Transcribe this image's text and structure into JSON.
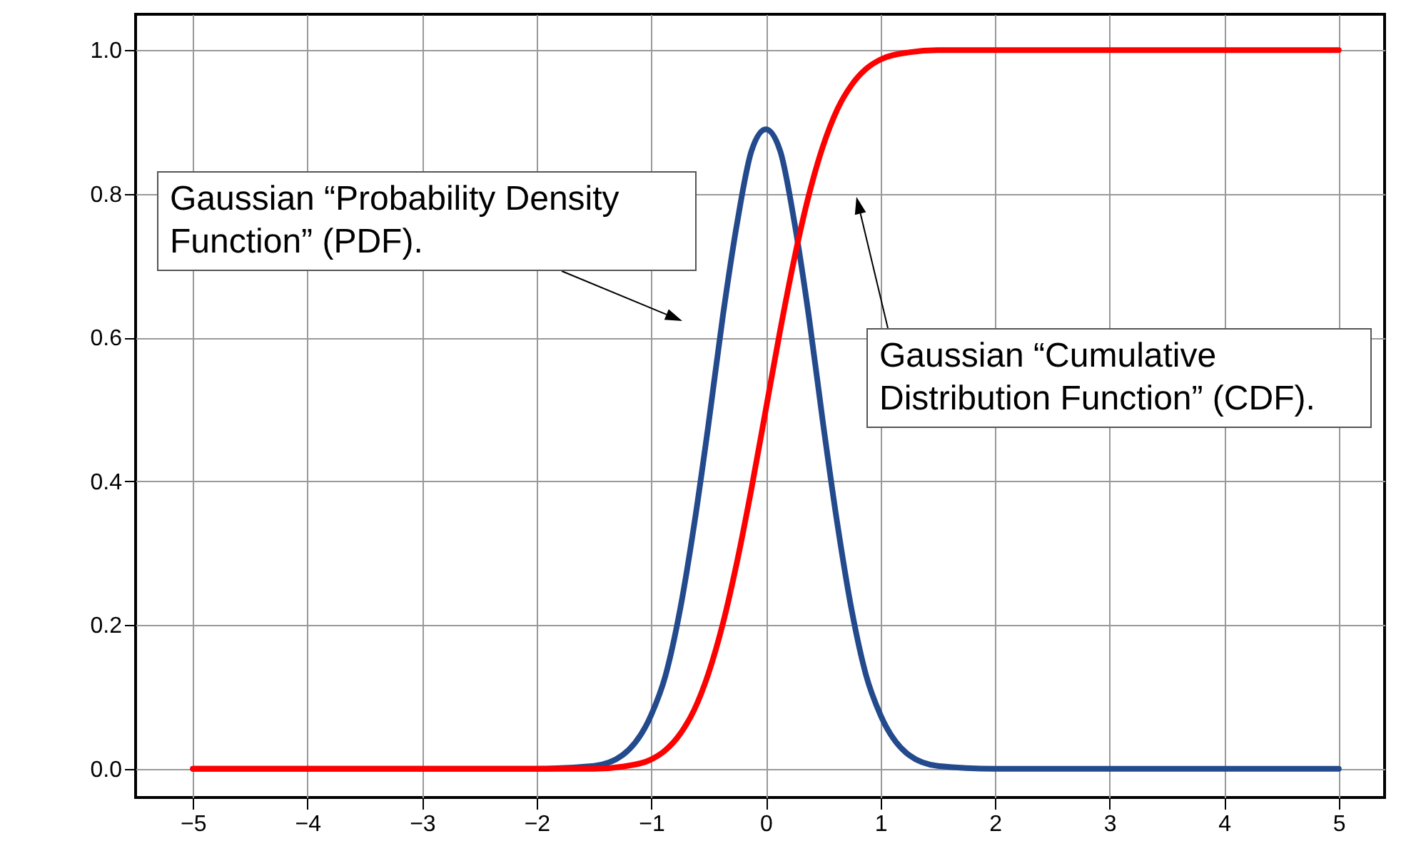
{
  "chart_data": {
    "type": "line",
    "x": [
      -5,
      -2,
      -1.5,
      -1.25,
      -1,
      -0.875,
      -0.75,
      -0.625,
      -0.5,
      -0.375,
      -0.25,
      -0.125,
      0,
      0.125,
      0.25,
      0.375,
      0.5,
      0.625,
      0.75,
      0.875,
      1,
      1.25,
      1.5,
      2,
      5
    ],
    "series": [
      {
        "name": null,
        "color": "#234a8c",
        "values": [
          0,
          0,
          0.004,
          0.019,
          0.075,
          0.13,
          0.22,
          0.34,
          0.48,
          0.63,
          0.76,
          0.86,
          0.89,
          0.86,
          0.76,
          0.63,
          0.48,
          0.34,
          0.22,
          0.13,
          0.075,
          0.019,
          0.004,
          0,
          0
        ]
      },
      {
        "name": null,
        "color": "#ff0000",
        "values": [
          0,
          0,
          0,
          0.003,
          0.013,
          0.026,
          0.048,
          0.082,
          0.133,
          0.202,
          0.289,
          0.39,
          0.5,
          0.61,
          0.711,
          0.798,
          0.867,
          0.918,
          0.952,
          0.974,
          0.987,
          0.997,
          1,
          1,
          1
        ]
      }
    ],
    "xlim": [
      -5.5,
      5.4
    ],
    "ylim": [
      -0.04,
      1.05
    ],
    "xticks": [
      {
        "value": -5,
        "label": "−5"
      },
      {
        "value": -4,
        "label": "−4"
      },
      {
        "value": -3,
        "label": "−3"
      },
      {
        "value": -2,
        "label": "−2"
      },
      {
        "value": -1,
        "label": "−1"
      },
      0,
      1,
      2,
      3,
      4,
      5
    ],
    "yticks": [
      {
        "value": 0,
        "label": "0.0"
      },
      0.2,
      0.4,
      0.6,
      0.8,
      {
        "value": 1,
        "label": "1.0"
      }
    ],
    "grid": true,
    "legend": false,
    "marker": "none",
    "line_style": "solid",
    "annotations": [
      "Gaussian “Probability Density Function” (PDF).",
      "Gaussian “Cumulative Distribution Function” (CDF)."
    ]
  }
}
